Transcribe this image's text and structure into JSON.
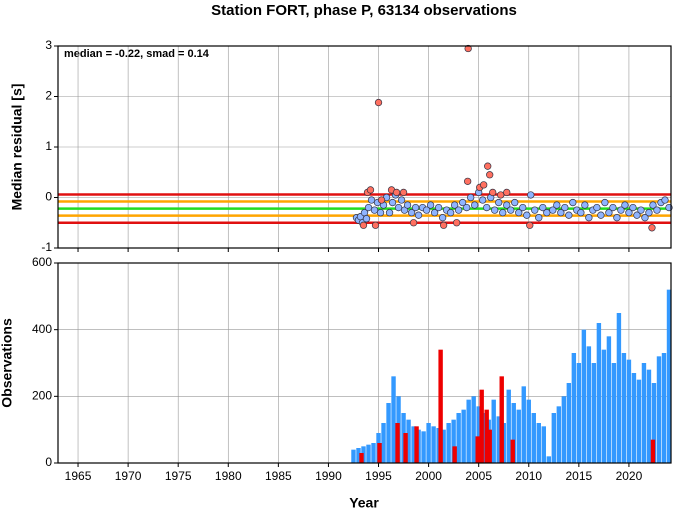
{
  "chart_data": [
    {
      "type": "scatter",
      "title": "Station FORT, phase P, 63134 observations",
      "y_label": "Median residual [s]",
      "annotation": "median = -0.22, smad = 0.14",
      "xlim": [
        1963,
        2024.2
      ],
      "xticks": [
        1965,
        1970,
        1975,
        1980,
        1985,
        1990,
        1995,
        2000,
        2005,
        2010,
        2015,
        2020
      ],
      "ylim": [
        -1,
        3
      ],
      "yticks": [
        -1,
        0,
        1,
        2,
        3
      ],
      "grid": true,
      "ref_lines": [
        {
          "value": 0.06,
          "color": "#e01010"
        },
        {
          "value": -0.08,
          "color": "#ffa500"
        },
        {
          "value": -0.22,
          "color": "#22dd22"
        },
        {
          "value": -0.36,
          "color": "#ffa500"
        },
        {
          "value": -0.5,
          "color": "#e01010"
        }
      ],
      "series": [
        {
          "color": "#8fb4ff",
          "x": [
            1992.8,
            1993.0,
            1993.2,
            1993.4,
            1993.6,
            1993.8,
            1994.0,
            1994.3,
            1994.6,
            1994.9,
            1995.2,
            1995.5,
            1995.8,
            1996.1,
            1996.4,
            1996.7,
            1997.0,
            1997.3,
            1997.6,
            1997.9,
            1998.3,
            1998.7,
            1999.0,
            1999.4,
            1999.8,
            2000.2,
            2000.6,
            2001.0,
            2001.4,
            2001.8,
            2002.2,
            2002.6,
            2003.0,
            2003.4,
            2003.8,
            2004.2,
            2004.6,
            2005.0,
            2005.4,
            2005.8,
            2006.2,
            2006.6,
            2007.0,
            2007.4,
            2007.8,
            2008.2,
            2008.6,
            2009.0,
            2009.4,
            2009.8,
            2010.2,
            2010.6,
            2011.0,
            2011.4,
            2011.8,
            2012.4,
            2012.8,
            2013.2,
            2013.6,
            2014.0,
            2014.4,
            2014.8,
            2015.2,
            2015.6,
            2016.0,
            2016.4,
            2016.8,
            2017.2,
            2017.6,
            2018.0,
            2018.4,
            2018.8,
            2019.2,
            2019.6,
            2020.0,
            2020.4,
            2020.8,
            2021.2,
            2021.6,
            2022.0,
            2022.4,
            2022.8,
            2023.2,
            2023.6,
            2024.0
          ],
          "values": [
            -0.4,
            -0.45,
            -0.38,
            -0.5,
            -0.3,
            -0.42,
            -0.2,
            -0.05,
            -0.25,
            -0.1,
            -0.3,
            -0.15,
            0.0,
            -0.3,
            -0.1,
            0.05,
            -0.2,
            -0.05,
            -0.25,
            -0.15,
            -0.3,
            -0.2,
            -0.35,
            -0.2,
            -0.25,
            -0.15,
            -0.3,
            -0.2,
            -0.4,
            -0.25,
            -0.3,
            -0.15,
            -0.25,
            -0.1,
            -0.2,
            0.0,
            -0.15,
            0.1,
            -0.05,
            -0.2,
            0.0,
            -0.25,
            -0.1,
            -0.3,
            -0.15,
            -0.25,
            -0.1,
            -0.3,
            -0.2,
            -0.35,
            0.05,
            -0.25,
            -0.4,
            -0.2,
            -0.3,
            -0.25,
            -0.15,
            -0.3,
            -0.2,
            -0.35,
            -0.1,
            -0.25,
            -0.3,
            -0.15,
            -0.4,
            -0.25,
            -0.2,
            -0.35,
            -0.1,
            -0.3,
            -0.2,
            -0.4,
            -0.25,
            -0.15,
            -0.3,
            -0.2,
            -0.35,
            -0.25,
            -0.4,
            -0.3,
            -0.15,
            -0.25,
            -0.1,
            -0.05,
            -0.2
          ]
        },
        {
          "color": "#ff7060",
          "x": [
            1993.5,
            1993.9,
            1994.2,
            1994.7,
            1995.0,
            1995.3,
            1996.3,
            1996.8,
            1997.5,
            1998.5,
            2001.5,
            2002.8,
            2003.9,
            2003.95,
            2005.1,
            2005.5,
            2005.9,
            2006.1,
            2006.4,
            2007.2,
            2007.8,
            2010.1,
            2022.3
          ],
          "values": [
            -0.55,
            0.1,
            0.15,
            -0.55,
            1.88,
            -0.05,
            0.15,
            0.1,
            0.1,
            -0.5,
            -0.55,
            -0.5,
            0.32,
            2.95,
            0.2,
            0.25,
            0.62,
            0.45,
            0.1,
            0.05,
            0.1,
            -0.55,
            -0.6
          ]
        }
      ]
    },
    {
      "type": "bar",
      "y_label": "Observations",
      "x_label": "Year",
      "xlim": [
        1963,
        2024.2
      ],
      "xticks": [
        1965,
        1970,
        1975,
        1980,
        1985,
        1990,
        1995,
        2000,
        2005,
        2010,
        2015,
        2020
      ],
      "ylim": [
        0,
        600
      ],
      "yticks": [
        0,
        200,
        400,
        600
      ],
      "grid": true,
      "series": [
        {
          "color": "#3399ff",
          "x": [
            1992.5,
            1993,
            1993.5,
            1994,
            1994.5,
            1995,
            1995.5,
            1996,
            1996.5,
            1997,
            1997.5,
            1998,
            1998.5,
            1999,
            1999.5,
            2000,
            2000.5,
            2001,
            2001.5,
            2002,
            2002.5,
            2003,
            2003.5,
            2004,
            2004.5,
            2005,
            2005.5,
            2006,
            2006.5,
            2007,
            2007.5,
            2008,
            2008.5,
            2009,
            2009.5,
            2010,
            2010.5,
            2011,
            2011.5,
            2012,
            2012.5,
            2013,
            2013.5,
            2014,
            2014.5,
            2015,
            2015.5,
            2016,
            2016.5,
            2017,
            2017.5,
            2018,
            2018.5,
            2019,
            2019.5,
            2020,
            2020.5,
            2021,
            2021.5,
            2022,
            2022.5,
            2023,
            2023.5,
            2024
          ],
          "values": [
            40,
            45,
            50,
            55,
            60,
            90,
            120,
            180,
            260,
            200,
            150,
            130,
            110,
            100,
            95,
            120,
            110,
            105,
            100,
            120,
            130,
            150,
            160,
            190,
            200,
            170,
            150,
            130,
            190,
            140,
            120,
            220,
            180,
            160,
            230,
            190,
            150,
            120,
            110,
            20,
            150,
            170,
            200,
            240,
            330,
            300,
            400,
            350,
            300,
            420,
            340,
            380,
            300,
            450,
            330,
            310,
            270,
            250,
            300,
            280,
            240,
            320,
            330,
            520
          ]
        },
        {
          "color": "#ee0000",
          "x": [
            1993.3,
            1995.1,
            1996.9,
            1997.7,
            1998.8,
            2001.2,
            2002.6,
            2004.9,
            2005.3,
            2005.8,
            2006.1,
            2007.3,
            2008.4,
            2022.4
          ],
          "values": [
            30,
            60,
            120,
            90,
            110,
            340,
            50,
            80,
            220,
            160,
            100,
            260,
            70,
            70
          ]
        }
      ]
    }
  ]
}
